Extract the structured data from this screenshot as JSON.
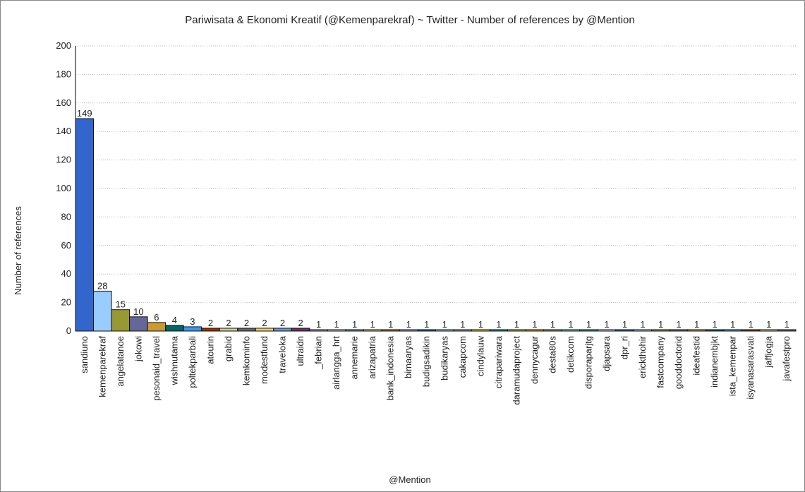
{
  "chart_data": {
    "type": "bar",
    "title": "Pariwisata & Ekonomi Kreatif (@Kemenparekraf) ~ Twitter - Number of references by @Mention",
    "x_label": "@Mention",
    "y_label": "Number of references",
    "categories": [
      "sandiuno",
      "kemenparekraf",
      "angelatanoe",
      "jokowi",
      "pesonaid_travel",
      "wishnutama",
      "poltekparbali",
      "atourin",
      "grabid",
      "kemkominfo",
      "modestfund",
      "traveloka",
      "ultraidn",
      "_febrian",
      "airlangga_hrt",
      "annemarie",
      "arizapatria",
      "bank_indonesia",
      "bimaaryas",
      "budigsadikin",
      "budikaryas",
      "cakapcom",
      "cindylauw",
      "citrapariwara",
      "daramudaproject",
      "dennycagur",
      "desta80s",
      "detikcom",
      "disporaparjtg",
      "djapsara",
      "dpr_ri",
      "erickthohir",
      "fastcompany",
      "gooddoctorid",
      "ideafestid",
      "indianembjkt",
      "ista_kemenpar",
      "isyanasarasvati",
      "jaffjogja",
      "javafestpro"
    ],
    "values": [
      149,
      28,
      15,
      10,
      6,
      4,
      3,
      2,
      2,
      2,
      2,
      2,
      2,
      1,
      1,
      1,
      1,
      1,
      1,
      1,
      1,
      1,
      1,
      1,
      1,
      1,
      1,
      1,
      1,
      1,
      1,
      1,
      1,
      1,
      1,
      1,
      1,
      1,
      1,
      1
    ],
    "colors": [
      "#3366cc",
      "#99ccff",
      "#999933",
      "#666699",
      "#cc9933",
      "#006666",
      "#3399ff",
      "#993300",
      "#cccc99",
      "#666666",
      "#ffcc66",
      "#6699cc",
      "#663366",
      "#9999cc",
      "#cccccc",
      "#669999",
      "#cccc66",
      "#cc6600",
      "#9999ff",
      "#0066cc",
      "#99cccc",
      "#999999",
      "#ffcc00",
      "#009999",
      "#99cc33",
      "#ff9900",
      "#999966",
      "#66cccc",
      "#339966",
      "#ccccff",
      "#3366cc",
      "#99ccff",
      "#999933",
      "#666699",
      "#cc9933",
      "#006666",
      "#3399ff",
      "#993300",
      "#cccc99",
      "#666666"
    ],
    "ylim": [
      0,
      200
    ],
    "yticks": [
      0,
      20,
      40,
      60,
      80,
      100,
      120,
      140,
      160,
      180,
      200
    ],
    "grid": true
  }
}
